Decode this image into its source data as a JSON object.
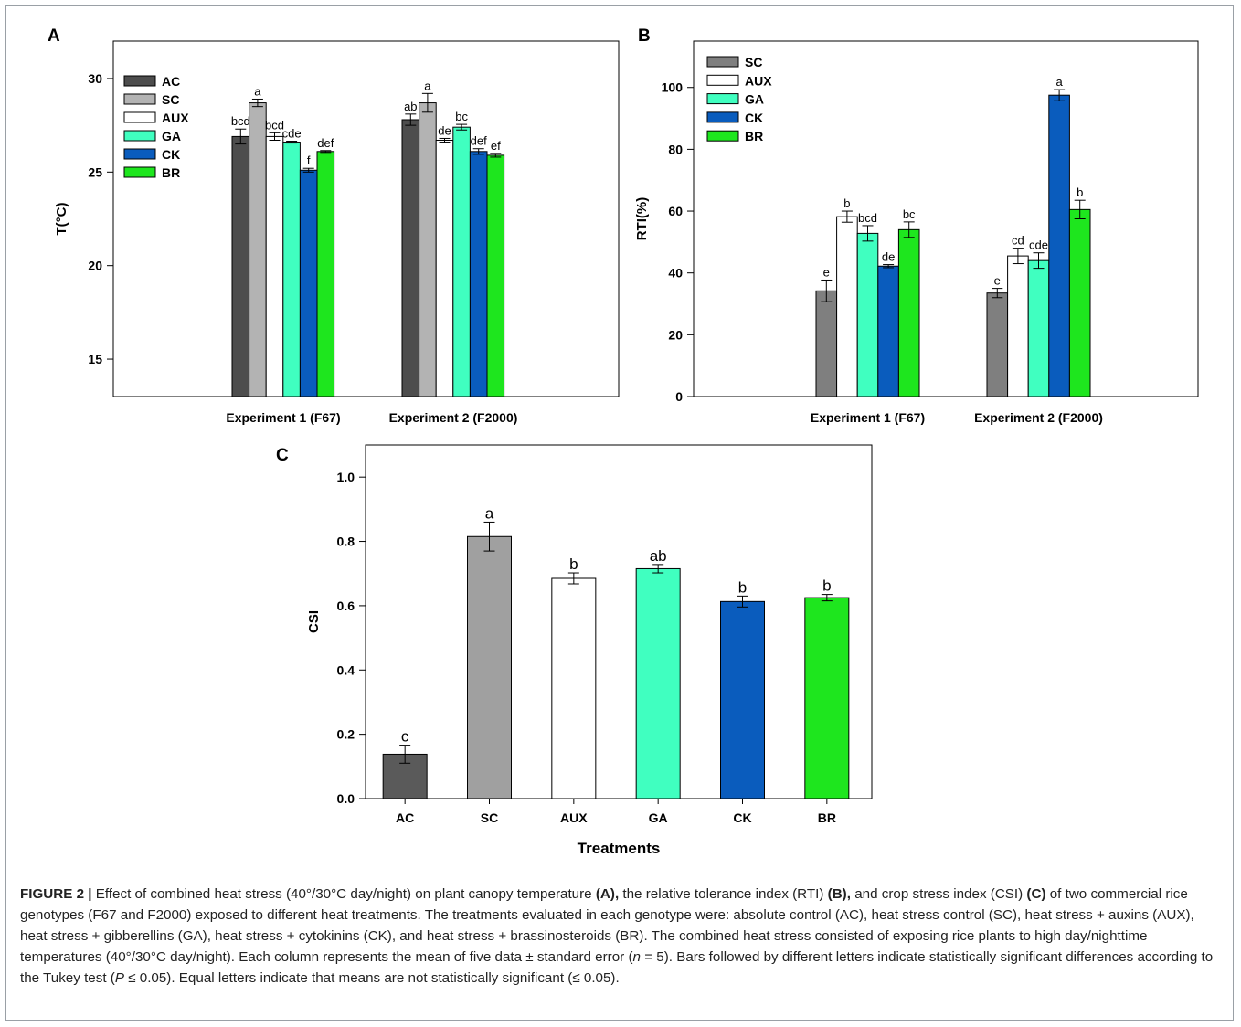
{
  "figure": {
    "caption": {
      "label": "FIGURE 2 |",
      "parts": [
        {
          "t": " Effect of combined heat stress (40°/30°C day/night) on plant canopy temperature ",
          "b": false
        },
        {
          "t": "(A),",
          "b": true
        },
        {
          "t": " the relative tolerance index (RTI) ",
          "b": false
        },
        {
          "t": "(B),",
          "b": true
        },
        {
          "t": " and crop stress index (CSI) ",
          "b": false
        },
        {
          "t": "(C)",
          "b": true
        },
        {
          "t": " of two commercial rice genotypes (F67 and F2000) exposed to different heat treatments. The treatments evaluated in each genotype were: absolute control (AC), heat stress control (SC), heat stress + auxins (AUX), heat stress + gibberellins (GA), heat stress + cytokinins (CK), and heat stress + brassinosteroids (BR). The combined heat stress consisted of exposing rice plants to high day/nighttime temperatures (40°/30°C day/night). Each column represents the mean of five data ± standard error (",
          "b": false
        },
        {
          "t": "n",
          "i": true
        },
        {
          "t": " = 5). Bars followed by different letters indicate statistically significant differences according to the Tukey test (",
          "b": false
        },
        {
          "t": "P",
          "i": true
        },
        {
          "t": " ≤ 0.05). Equal letters indicate that means are not statistically significant (≤ 0.05).",
          "b": false
        }
      ]
    },
    "colors": {
      "AC": "#4d4d4d",
      "SC": "#b3b3b3",
      "SC_B": "#7f7f7f",
      "SC_C": "#a0a0a0",
      "AC_C": "#5a5a5a",
      "AUX": "#ffffff",
      "GA": "#40ffc0",
      "CK": "#0a5cbd",
      "BR": "#1ee61e"
    }
  },
  "chart_data": [
    {
      "panel": "A",
      "type": "bar",
      "ylabel": "T(°C)",
      "ylim": [
        13,
        32
      ],
      "yticks": [
        15,
        20,
        25,
        30
      ],
      "categories": [
        "Experiment 1 (F67)",
        "Experiment 2 (F2000)"
      ],
      "legend": "top-left",
      "series": [
        {
          "name": "AC",
          "values": [
            26.9,
            27.8
          ],
          "err": [
            0.4,
            0.3
          ],
          "letters": [
            "bcd",
            "ab"
          ]
        },
        {
          "name": "SC",
          "values": [
            28.7,
            28.7
          ],
          "err": [
            0.2,
            0.5
          ],
          "letters": [
            "a",
            "a"
          ]
        },
        {
          "name": "AUX",
          "values": [
            26.9,
            26.7
          ],
          "err": [
            0.2,
            0.1
          ],
          "letters": [
            "bcd",
            "de"
          ]
        },
        {
          "name": "GA",
          "values": [
            26.6,
            27.4
          ],
          "err": [
            0.05,
            0.15
          ],
          "letters": [
            "cde",
            "bc"
          ]
        },
        {
          "name": "CK",
          "values": [
            25.1,
            26.1
          ],
          "err": [
            0.1,
            0.15
          ],
          "letters": [
            "f",
            "def"
          ]
        },
        {
          "name": "BR",
          "values": [
            26.1,
            25.9
          ],
          "err": [
            0.05,
            0.1
          ],
          "letters": [
            "def",
            "ef"
          ]
        }
      ]
    },
    {
      "panel": "B",
      "type": "bar",
      "ylabel": "RTI(%)",
      "ylim": [
        0,
        115
      ],
      "yticks": [
        0,
        20,
        40,
        60,
        80,
        100
      ],
      "categories": [
        "Experiment 1 (F67)",
        "Experiment 2 (F2000)"
      ],
      "legend": "top-left",
      "series": [
        {
          "name": "SC",
          "values": [
            34.2,
            33.5
          ],
          "err": [
            3.5,
            1.5
          ],
          "letters": [
            "e",
            "e"
          ]
        },
        {
          "name": "AUX",
          "values": [
            58.2,
            45.5
          ],
          "err": [
            1.8,
            2.5
          ],
          "letters": [
            "b",
            "cd"
          ]
        },
        {
          "name": "GA",
          "values": [
            52.8,
            44.0
          ],
          "err": [
            2.5,
            2.5
          ],
          "letters": [
            "bcd",
            "cde"
          ]
        },
        {
          "name": "CK",
          "values": [
            42.2,
            97.5
          ],
          "err": [
            0.5,
            1.8
          ],
          "letters": [
            "de",
            "a"
          ]
        },
        {
          "name": "BR",
          "values": [
            54.0,
            60.5
          ],
          "err": [
            2.5,
            3.0
          ],
          "letters": [
            "bc",
            "b"
          ]
        }
      ]
    },
    {
      "panel": "C",
      "type": "bar",
      "xlabel": "Treatments",
      "ylabel": "CSI",
      "ylim": [
        0,
        1.1
      ],
      "yticks": [
        "0.0",
        "0.2",
        "0.4",
        "0.6",
        "0.8",
        "1.0"
      ],
      "categories": [
        "AC",
        "SC",
        "AUX",
        "GA",
        "CK",
        "BR"
      ],
      "values": [
        0.138,
        0.815,
        0.685,
        0.715,
        0.613,
        0.625
      ],
      "err": [
        0.028,
        0.045,
        0.017,
        0.013,
        0.017,
        0.01
      ],
      "letters": [
        "c",
        "a",
        "b",
        "ab",
        "b",
        "b"
      ]
    }
  ]
}
